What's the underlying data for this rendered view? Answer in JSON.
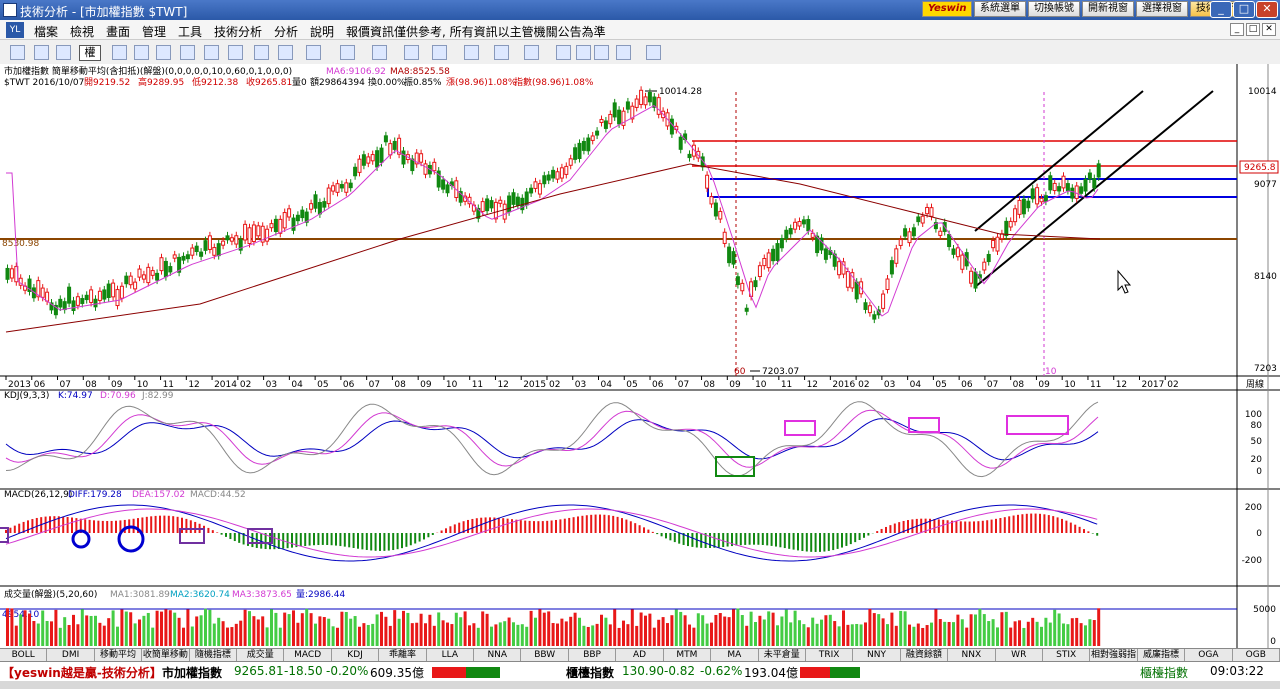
{
  "window": {
    "title": "技術分析 - [市加權指數 $TWT]"
  },
  "top_buttons": [
    {
      "label": "Yeswin",
      "kind": "logo"
    },
    {
      "label": "系統選單"
    },
    {
      "label": "切換帳號"
    },
    {
      "label": "開新視窗"
    },
    {
      "label": "選擇視窗"
    },
    {
      "label": "技術分析",
      "kind": "active"
    }
  ],
  "window_controls": [
    "_",
    "□",
    "✕"
  ],
  "menu": {
    "items": [
      "檔案",
      "檢視",
      "畫面",
      "管理",
      "工具",
      "技術分析",
      "分析",
      "說明",
      "報價資訊僅供參考, 所有資訊以主管機關公告為準"
    ],
    "icon_text": "YL"
  },
  "toolbar": {
    "rights_label": "權"
  },
  "chart_header": {
    "line1": "市加權指數  簡單移動平均(含扣抵)(解盤)(0,0,0,0,0,10,0,60,0,1,0,0,0)",
    "ma6": "MA6:9106.92",
    "ma8": "MA8:8525.58",
    "line2_symbol": "$TWT 2016/10/07",
    "open": "開9219.52",
    "high": "高9289.95",
    "low": "低9212.38",
    "close": "收9265.81",
    "vol": "量0",
    "amount": "額29864394",
    "turnover": "換0.00%",
    "amplitude": "振0.85%",
    "change": "漲(98.96)1.08%",
    "index": "指數(98.96)1.08%"
  },
  "main_axis": {
    "ticks": [
      "10014",
      "9265.8",
      "9077",
      "8140",
      "7203"
    ],
    "x_labels": [
      "2013",
      "06",
      "07",
      "08",
      "09",
      "10",
      "11",
      "12",
      "2014",
      "02",
      "03",
      "04",
      "05",
      "06",
      "07",
      "08",
      "09",
      "10",
      "11",
      "12",
      "2015",
      "02",
      "03",
      "04",
      "05",
      "06",
      "07",
      "08",
      "09",
      "10",
      "11",
      "12",
      "2016",
      "02",
      "03",
      "04",
      "05",
      "06",
      "07",
      "08",
      "09",
      "10",
      "11",
      "12",
      "2017",
      "02"
    ],
    "x_unit": "周線",
    "annotations": {
      "high": "10014.28",
      "low": "7203.07",
      "hline": "8530.98",
      "mark60": "60",
      "mark10": "10"
    }
  },
  "kdj": {
    "title": "KDJ(9,3,3)",
    "k": "K:74.97",
    "d": "D:70.96",
    "j": "J:82.99",
    "ticks": [
      "100",
      "80",
      "50",
      "20",
      "0"
    ]
  },
  "macd": {
    "title": "MACD(26,12,9)",
    "diff": "DIFF:179.28",
    "dea": "DEA:157.02",
    "macd": "MACD:44.52",
    "ticks": [
      "200",
      "0",
      "-200"
    ]
  },
  "volume": {
    "title": "成交量(解盤)(5,20,60)",
    "ma1": "MA1:3081.89",
    "ma2": "MA2:3620.74",
    "ma3": "MA3:3873.65",
    "vol": "量:2986.44",
    "left_label": "4954.10",
    "ticks": [
      "5000",
      "0"
    ]
  },
  "indicator_tabs": [
    "BOLL",
    "DMI",
    "移動平均",
    "收簡單移動平",
    "隨機指標",
    "成交量",
    "MACD",
    "KDJ",
    "乖離率",
    "LLA",
    "NNA",
    "BBW",
    "BBP",
    "AD",
    "MTM",
    "MA",
    "未平倉量",
    "TRIX",
    "NNY",
    "融資餘額",
    "NNX",
    "WR",
    "STIX",
    "相對強弱指",
    "威廉指標",
    "OGA",
    "OGB"
  ],
  "status": {
    "brand": "【yeswin越是贏-技術分析】",
    "idx1_name": "市加權指數",
    "idx1_val": "9265.81",
    "idx1_chg": "-18.50",
    "idx1_pct": "-0.20%",
    "idx1_amt": "609.35億",
    "idx2_name": "櫃檯指數",
    "idx2_val": "130.90",
    "idx2_chg": "-0.82",
    "idx2_pct": "-0.62%",
    "idx2_amt": "193.04億",
    "right_label": "櫃檯指數",
    "clock": "09:03:22"
  },
  "colors": {
    "up": "#e81818",
    "down": "#118811",
    "bg": "#ffffff",
    "accent": "#2b59a8"
  }
}
